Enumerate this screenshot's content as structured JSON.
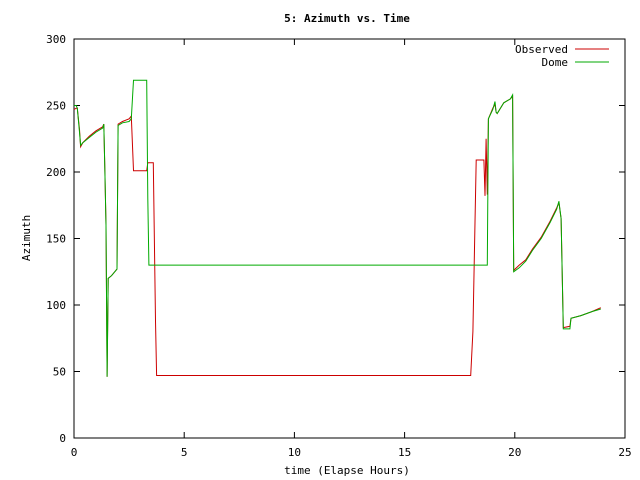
{
  "chart_data": {
    "type": "line",
    "title": "5: Azimuth vs. Time",
    "xlabel": "time (Elapse Hours)",
    "ylabel": "Azimuth",
    "xlim": [
      0,
      25
    ],
    "ylim": [
      0,
      300
    ],
    "xticks": [
      0,
      5,
      10,
      15,
      20,
      25
    ],
    "yticks": [
      0,
      50,
      100,
      150,
      200,
      250,
      300
    ],
    "grid": false,
    "legend_position": "top-right",
    "series": [
      {
        "name": "Observed",
        "color": "#cc0000",
        "points": [
          [
            0.0,
            247
          ],
          [
            0.1,
            248
          ],
          [
            0.15,
            248
          ],
          [
            0.25,
            232
          ],
          [
            0.3,
            219
          ],
          [
            0.4,
            222
          ],
          [
            0.7,
            227
          ],
          [
            1.0,
            231
          ],
          [
            1.3,
            234
          ],
          [
            1.35,
            236
          ],
          [
            1.4,
            200
          ],
          [
            1.45,
            160
          ],
          [
            1.5,
            46
          ],
          [
            1.55,
            120
          ],
          [
            1.7,
            122
          ],
          [
            1.95,
            127
          ],
          [
            2.0,
            236
          ],
          [
            2.2,
            238
          ],
          [
            2.5,
            240
          ],
          [
            2.6,
            242
          ],
          [
            2.7,
            201
          ],
          [
            3.1,
            201
          ],
          [
            3.3,
            201
          ],
          [
            3.35,
            207
          ],
          [
            3.6,
            207
          ],
          [
            3.7,
            88
          ],
          [
            3.75,
            47
          ],
          [
            18.0,
            47
          ],
          [
            18.1,
            80
          ],
          [
            18.25,
            209
          ],
          [
            18.6,
            209
          ],
          [
            18.65,
            182
          ],
          [
            18.7,
            225
          ],
          [
            18.75,
            183
          ],
          [
            18.8,
            240
          ],
          [
            19.0,
            248
          ],
          [
            19.1,
            251
          ],
          [
            19.15,
            245
          ],
          [
            19.2,
            244
          ],
          [
            19.5,
            252
          ],
          [
            19.8,
            255
          ],
          [
            19.9,
            257
          ],
          [
            19.95,
            126
          ],
          [
            20.2,
            130
          ],
          [
            20.5,
            134
          ],
          [
            20.8,
            142
          ],
          [
            21.2,
            151
          ],
          [
            21.6,
            163
          ],
          [
            21.9,
            173
          ],
          [
            22.0,
            177
          ],
          [
            22.1,
            165
          ],
          [
            22.2,
            83
          ],
          [
            22.5,
            84
          ],
          [
            22.55,
            90
          ],
          [
            23.0,
            92
          ],
          [
            23.5,
            95
          ],
          [
            23.9,
            98
          ]
        ]
      },
      {
        "name": "Dome",
        "color": "#00aa00",
        "points": [
          [
            0.0,
            250
          ],
          [
            0.1,
            250
          ],
          [
            0.15,
            248
          ],
          [
            0.25,
            230
          ],
          [
            0.3,
            220
          ],
          [
            0.4,
            222
          ],
          [
            0.7,
            226
          ],
          [
            1.0,
            230
          ],
          [
            1.3,
            233
          ],
          [
            1.35,
            236
          ],
          [
            1.4,
            200
          ],
          [
            1.45,
            160
          ],
          [
            1.5,
            46
          ],
          [
            1.55,
            120
          ],
          [
            1.7,
            122
          ],
          [
            1.95,
            127
          ],
          [
            2.0,
            235
          ],
          [
            2.2,
            237
          ],
          [
            2.5,
            238
          ],
          [
            2.6,
            240
          ],
          [
            2.7,
            269
          ],
          [
            3.1,
            269
          ],
          [
            3.3,
            269
          ],
          [
            3.35,
            180
          ],
          [
            3.4,
            130
          ],
          [
            18.0,
            130
          ],
          [
            18.6,
            130
          ],
          [
            18.75,
            130
          ],
          [
            18.8,
            240
          ],
          [
            19.0,
            247
          ],
          [
            19.1,
            253
          ],
          [
            19.15,
            245
          ],
          [
            19.2,
            244
          ],
          [
            19.5,
            252
          ],
          [
            19.8,
            255
          ],
          [
            19.9,
            258
          ],
          [
            19.95,
            125
          ],
          [
            20.2,
            128
          ],
          [
            20.5,
            133
          ],
          [
            20.8,
            141
          ],
          [
            21.2,
            150
          ],
          [
            21.6,
            162
          ],
          [
            21.9,
            172
          ],
          [
            22.0,
            178
          ],
          [
            22.1,
            165
          ],
          [
            22.2,
            82
          ],
          [
            22.5,
            82
          ],
          [
            22.55,
            90
          ],
          [
            23.0,
            92
          ],
          [
            23.5,
            95
          ],
          [
            23.9,
            97
          ]
        ]
      }
    ]
  }
}
